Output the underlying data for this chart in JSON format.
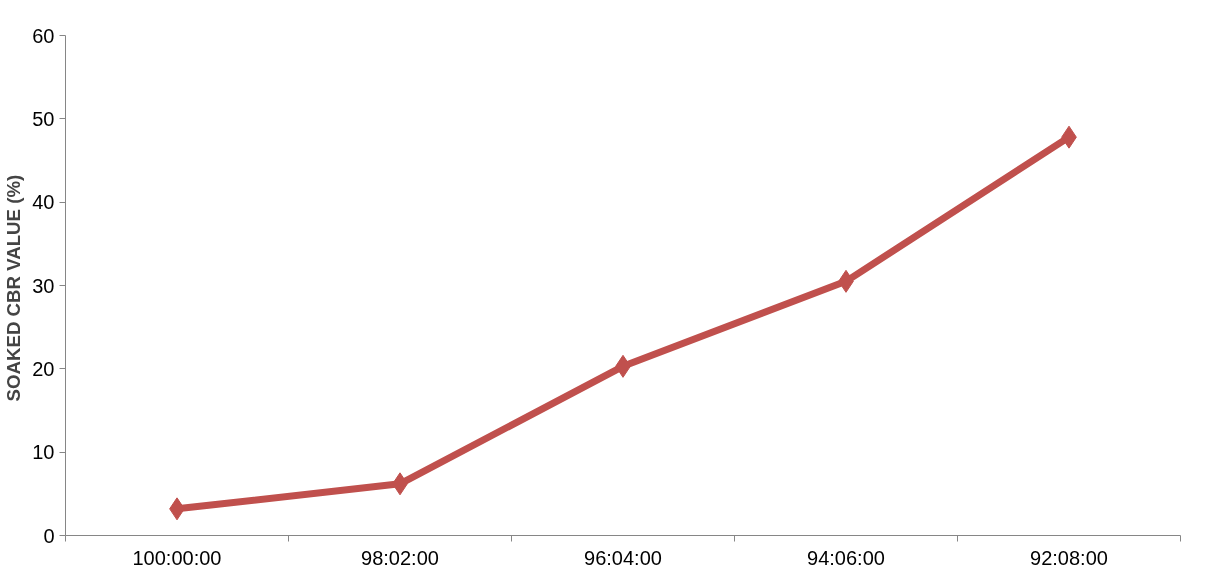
{
  "chart_data": {
    "type": "line",
    "ylabel": "SOAKED CBR  VALUE (%)",
    "categories": [
      "100:00:00",
      "98:02:00",
      "96:04:00",
      "94:06:00",
      "92:08:00"
    ],
    "series": [
      {
        "color": "#c0504d",
        "values": [
          3.2,
          6.2,
          20.3,
          30.5,
          47.8
        ]
      }
    ],
    "ylim": [
      0,
      60
    ],
    "yticks": [
      0,
      10,
      20,
      30,
      40,
      50,
      60
    ],
    "grid": false,
    "marker": "diamond",
    "line_style": "solid"
  }
}
